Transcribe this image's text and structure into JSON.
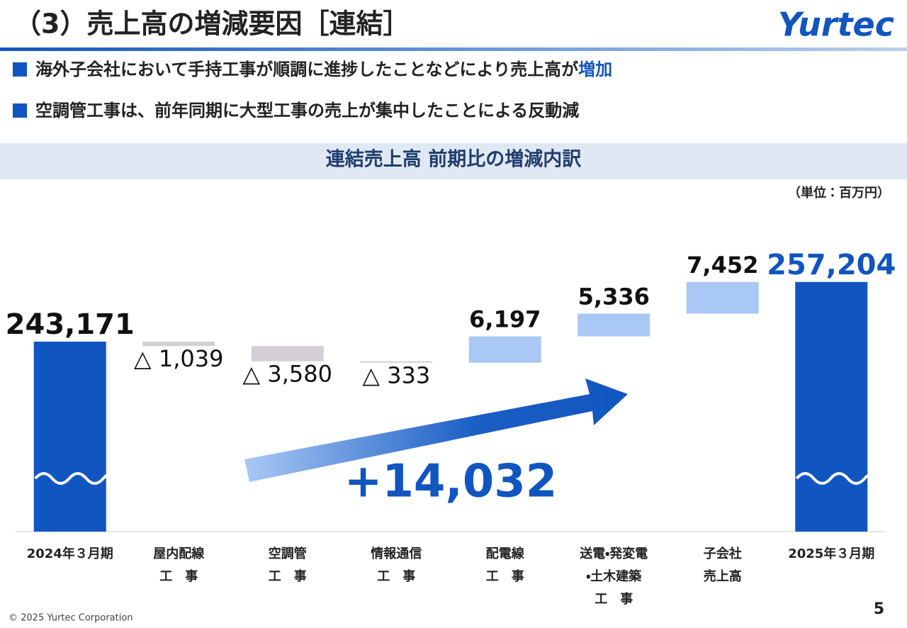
{
  "header": {
    "title": "（3）売上高の増減要因［連結］",
    "logo": "Yurtec"
  },
  "bullets": [
    {
      "text": "海外子会社において手持工事が順調に進捗したことなどにより売上高が",
      "highlight": "増加"
    },
    {
      "text": "空調管工事は、前年同期に大型工事の売上が集中したことによる反動減"
    }
  ],
  "chart_data": {
    "type": "waterfall",
    "title": "連結売上高 前期比の増減内訳",
    "unit": "（単位：百万円）",
    "categories": [
      "2024年３月期",
      "屋内配線\n工　事",
      "空調管\n工　事",
      "情報通信\n工　事",
      "配電線\n工　事",
      "送電・発変電\n・土木建築\n工　事",
      "子会社\n売上高",
      "2025年３月期"
    ],
    "values": [
      243171,
      -1039,
      -3580,
      -333,
      6197,
      5336,
      7452,
      257204
    ],
    "value_labels": [
      "243,171",
      "△ 1,039",
      "△ 3,580",
      "△ 333",
      "6,197",
      "5,336",
      "7,452",
      "257,204"
    ],
    "measures": [
      "absolute",
      "relative",
      "relative",
      "relative",
      "relative",
      "relative",
      "relative",
      "total"
    ],
    "colors": {
      "total": "#1155c0",
      "increase": "#a9c8f5",
      "decrease": "#d3cfd6"
    },
    "annotation": "+14,032"
  },
  "footer": {
    "copyright": "© 2025 Yurtec Corporation",
    "page": "5"
  }
}
